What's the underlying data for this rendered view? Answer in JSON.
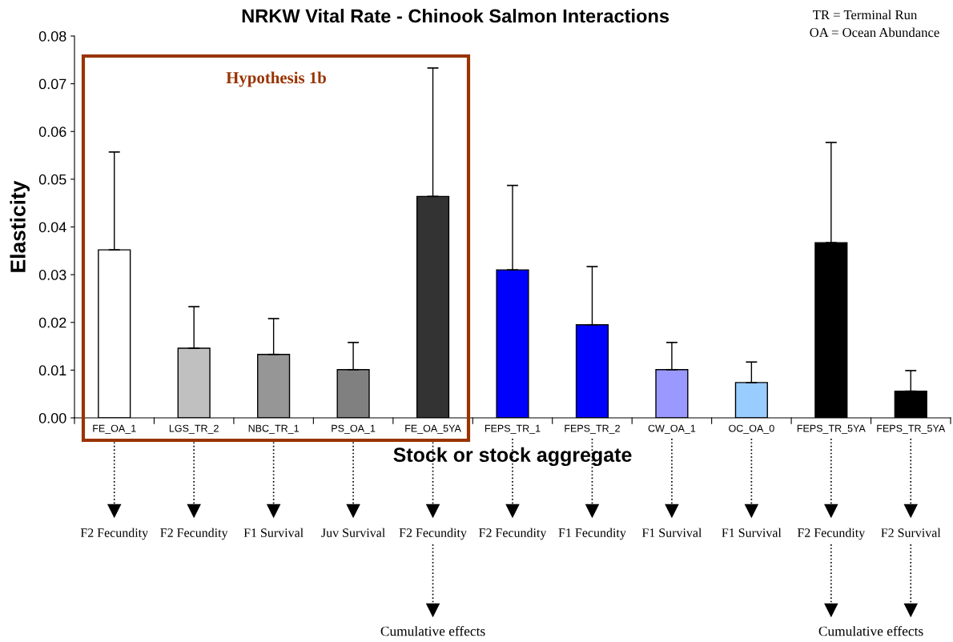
{
  "chart_data": {
    "type": "bar",
    "title": "NRKW Vital Rate - Chinook Salmon Interactions",
    "xlabel": "Stock or stock aggregate",
    "ylabel": "Elasticity",
    "categories": [
      "FE_OA_1",
      "LGS_TR_2",
      "NBC_TR_1",
      "PS_OA_1",
      "FE_OA_5YA",
      "FEPS_TR_1",
      "FEPS_TR_2",
      "CW_OA_1",
      "OC_OA_0",
      "FEPS_TR_5YA",
      "FEPS_TR_5YA"
    ],
    "values": [
      0.0352,
      0.0146,
      0.0133,
      0.0101,
      0.0464,
      0.031,
      0.0195,
      0.0101,
      0.0074,
      0.0367,
      0.0056
    ],
    "errors": [
      [
        0.0352,
        0.0557
      ],
      [
        0.0146,
        0.0233
      ],
      [
        0.0133,
        0.0208
      ],
      [
        0.0101,
        0.0158
      ],
      [
        0.0464,
        0.0733
      ],
      [
        0.031,
        0.0487
      ],
      [
        0.0195,
        0.0317
      ],
      [
        0.0101,
        0.0158
      ],
      [
        0.0074,
        0.0117
      ],
      [
        0.0367,
        0.0577
      ],
      [
        0.0056,
        0.0099
      ]
    ],
    "colors": [
      "#ffffff",
      "#c0c0c0",
      "#969696",
      "#808080",
      "#333333",
      "#0000ff",
      "#0000ff",
      "#9999ff",
      "#99ccff",
      "#000000",
      "#000000"
    ],
    "ylim": [
      0,
      0.08
    ],
    "yticks": [
      {
        "value": 0,
        "label": "0.00"
      },
      {
        "value": 0.01,
        "label": "0.01"
      },
      {
        "value": 0.02,
        "label": "0.02"
      },
      {
        "value": 0.03,
        "label": "0.03"
      },
      {
        "value": 0.04,
        "label": "0.04"
      },
      {
        "value": 0.05,
        "label": "0.05"
      },
      {
        "value": 0.06,
        "label": "0.06"
      },
      {
        "value": 0.07,
        "label": "0.07"
      },
      {
        "value": 0.08,
        "label": "0.08"
      }
    ],
    "grid": false,
    "annotations": [
      "Hypothesis 1b",
      "TR = Terminal Run",
      "OA = Ocean Abundance",
      "F2 Fecundity",
      "F2 Fecundity",
      "F1 Survival",
      "Juv Survival",
      "F2 Fecundity",
      "F2 Fecundity",
      "F1 Fecundity",
      "F1 Survival",
      "F1 Survival",
      "F2 Fecundity",
      "F2 Survival",
      "Cumulative effects",
      "Cumulative effects"
    ]
  }
}
